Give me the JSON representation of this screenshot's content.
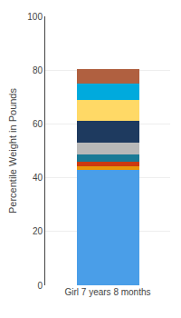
{
  "chart_data": {
    "type": "bar",
    "stacked": true,
    "ylabel": "Percentile Weight in Pounds",
    "categories": [
      "Girl 7 years 8 months"
    ],
    "series": [
      {
        "color": "#4A9EE8",
        "values": [
          43.0
        ]
      },
      {
        "color": "#E8960A",
        "values": [
          1.2
        ]
      },
      {
        "color": "#CC3A10",
        "values": [
          1.8
        ]
      },
      {
        "color": "#1A7A96",
        "values": [
          2.5
        ]
      },
      {
        "color": "#B8B8B8",
        "values": [
          4.5
        ]
      },
      {
        "color": "#1E3A5F",
        "values": [
          8.0
        ]
      },
      {
        "color": "#FFD966",
        "values": [
          8.0
        ]
      },
      {
        "color": "#00AADD",
        "values": [
          6.0
        ]
      },
      {
        "color": "#B06040",
        "values": [
          5.5
        ]
      }
    ],
    "ylim": [
      0,
      100
    ],
    "yticks": [
      0,
      20,
      40,
      60,
      80,
      100
    ],
    "grid": true
  }
}
